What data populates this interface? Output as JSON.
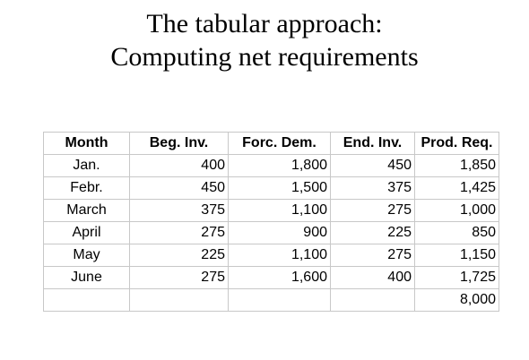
{
  "title": {
    "line1": "The tabular approach:",
    "line2": "Computing net requirements"
  },
  "table": {
    "headers": [
      "Month",
      "Beg. Inv.",
      "Forc. Dem.",
      "End. Inv.",
      "Prod. Req."
    ],
    "rows": [
      [
        "Jan.",
        "400",
        "1,800",
        "450",
        "1,850"
      ],
      [
        "Febr.",
        "450",
        "1,500",
        "375",
        "1,425"
      ],
      [
        "March",
        "375",
        "1,100",
        "275",
        "1,000"
      ],
      [
        "April",
        "275",
        "900",
        "225",
        "850"
      ],
      [
        "May",
        "225",
        "1,100",
        "275",
        "1,150"
      ],
      [
        "June",
        "275",
        "1,600",
        "400",
        "1,725"
      ]
    ],
    "total_row": [
      "",
      "",
      "",
      "",
      "8,000"
    ]
  }
}
